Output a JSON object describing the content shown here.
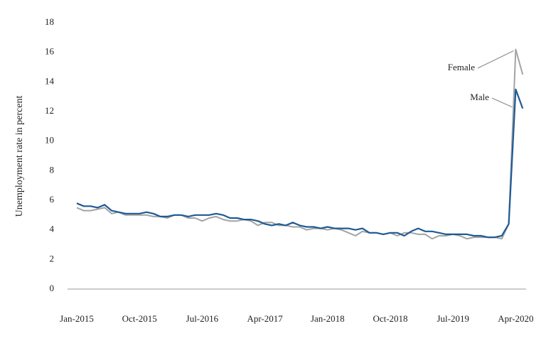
{
  "chart_data": {
    "type": "line",
    "y_label": "Unemployment rate in percent",
    "categories": [
      "Jan-2015",
      null,
      null,
      null,
      null,
      null,
      null,
      null,
      null,
      "Oct-2015",
      null,
      null,
      null,
      null,
      null,
      null,
      null,
      null,
      "Jul-2016",
      null,
      null,
      null,
      null,
      null,
      null,
      null,
      null,
      "Apr-2017",
      null,
      null,
      null,
      null,
      null,
      null,
      null,
      null,
      "Jan-2018",
      null,
      null,
      null,
      null,
      null,
      null,
      null,
      null,
      "Oct-2018",
      null,
      null,
      null,
      null,
      null,
      null,
      null,
      null,
      "Jul-2019",
      null,
      null,
      null,
      null,
      null,
      null,
      null,
      null,
      "Apr-2020",
      null
    ],
    "series": [
      {
        "name": "Female",
        "color": "#a3a3a3",
        "values": [
          5.5,
          5.3,
          5.3,
          5.4,
          5.5,
          5.1,
          5.2,
          5.0,
          5.0,
          5.0,
          5.0,
          4.9,
          4.9,
          4.8,
          5.0,
          5.0,
          4.8,
          4.8,
          4.6,
          4.8,
          4.9,
          4.7,
          4.6,
          4.6,
          4.7,
          4.6,
          4.3,
          4.5,
          4.5,
          4.3,
          4.3,
          4.2,
          4.2,
          4.0,
          4.1,
          4.1,
          4.0,
          4.1,
          4.0,
          3.8,
          3.6,
          3.9,
          3.8,
          3.8,
          3.7,
          3.8,
          3.6,
          3.8,
          3.8,
          3.7,
          3.7,
          3.4,
          3.6,
          3.6,
          3.7,
          3.6,
          3.4,
          3.5,
          3.5,
          3.5,
          3.5,
          3.4,
          4.4,
          16.2,
          14.5
        ]
      },
      {
        "name": "Male",
        "color": "#1f5a96",
        "values": [
          5.8,
          5.6,
          5.6,
          5.5,
          5.7,
          5.3,
          5.2,
          5.1,
          5.1,
          5.1,
          5.2,
          5.1,
          4.9,
          4.9,
          5.0,
          5.0,
          4.9,
          5.0,
          5.0,
          5.0,
          5.1,
          5.0,
          4.8,
          4.8,
          4.7,
          4.7,
          4.6,
          4.4,
          4.3,
          4.4,
          4.3,
          4.5,
          4.3,
          4.2,
          4.2,
          4.1,
          4.2,
          4.1,
          4.1,
          4.1,
          4.0,
          4.1,
          3.8,
          3.8,
          3.7,
          3.8,
          3.8,
          3.6,
          3.9,
          4.1,
          3.9,
          3.9,
          3.8,
          3.7,
          3.7,
          3.7,
          3.7,
          3.6,
          3.6,
          3.5,
          3.5,
          3.6,
          4.4,
          13.5,
          12.2
        ]
      }
    ],
    "ylim": [
      0,
      18
    ],
    "yticks": [
      0,
      2,
      4,
      6,
      8,
      10,
      12,
      14,
      16,
      18
    ],
    "grid": false
  }
}
